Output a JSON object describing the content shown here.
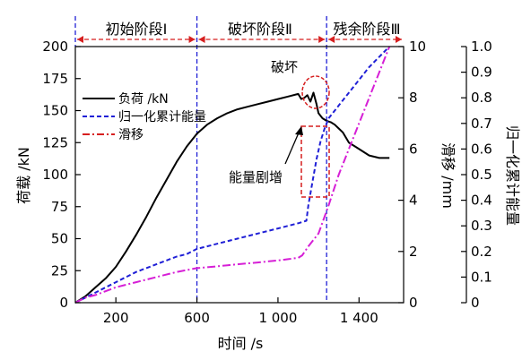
{
  "chart_data": {
    "type": "line",
    "xlabel": "时间 /s",
    "ylabel_left": "荷载 /kN",
    "ylabel_right1": "滑移 /mm",
    "ylabel_right2": "归一化累计能量",
    "xlim": [
      0,
      1620
    ],
    "ylim_left": [
      0,
      200
    ],
    "ylim_right1": [
      0,
      10
    ],
    "ylim_right2": [
      0,
      1.0
    ],
    "x_ticks": [
      200,
      600,
      1000,
      1400
    ],
    "x_tick_labels": [
      "200",
      "600",
      "1 000",
      "1 400"
    ],
    "y_left_ticks": [
      0,
      25,
      50,
      75,
      100,
      125,
      150,
      175,
      200
    ],
    "y_left_tick_labels": [
      "0",
      "25",
      "50",
      "75",
      "100",
      "125",
      "150",
      "175",
      "200"
    ],
    "y_right1_ticks": [
      0,
      2,
      4,
      6,
      8,
      10
    ],
    "y_right1_tick_labels": [
      "0",
      "2",
      "4",
      "6",
      "8",
      "10"
    ],
    "y_right2_ticks": [
      0,
      0.1,
      0.2,
      0.3,
      0.4,
      0.5,
      0.6,
      0.7,
      0.8,
      0.9,
      1.0
    ],
    "y_right2_tick_labels": [
      "0",
      "0.1",
      "0.2",
      "0.3",
      "0.4",
      "0.5",
      "0.6",
      "0.7",
      "0.8",
      "0.9",
      "1.0"
    ],
    "stage_boundaries": [
      600,
      1240
    ],
    "stages": [
      "初始阶段Ⅰ",
      "破坏阶段Ⅱ",
      "残余阶段Ⅲ"
    ],
    "legend_position": "upper-left",
    "series": [
      {
        "name": "负荷 /kN",
        "axis": "left",
        "color": "#000000",
        "dash": "solid",
        "x": [
          0,
          50,
          100,
          150,
          200,
          250,
          300,
          350,
          400,
          450,
          500,
          550,
          600,
          650,
          700,
          750,
          800,
          850,
          900,
          950,
          1000,
          1050,
          1100,
          1115,
          1130,
          1145,
          1160,
          1175,
          1190,
          1200,
          1220,
          1240,
          1260,
          1280,
          1300,
          1320,
          1350,
          1380,
          1400,
          1450,
          1500,
          1550
        ],
        "y": [
          0,
          5,
          12,
          19,
          28,
          40,
          53,
          67,
          82,
          96,
          110,
          122,
          132,
          139,
          144,
          148,
          151,
          153,
          155,
          157,
          159,
          161,
          163,
          159,
          160,
          162,
          157,
          164,
          155,
          148,
          144,
          142,
          141,
          139,
          136,
          133,
          125,
          122,
          120,
          115,
          113,
          113
        ]
      },
      {
        "name": "归一化累计能量",
        "axis": "right2",
        "color": "#1f1fd6",
        "dash": "dash",
        "x": [
          0,
          50,
          100,
          200,
          300,
          400,
          500,
          550,
          600,
          650,
          700,
          800,
          900,
          1000,
          1050,
          1100,
          1140,
          1150,
          1170,
          1190,
          1210,
          1230,
          1250,
          1280,
          1300,
          1350,
          1400,
          1450,
          1500,
          1550
        ],
        "y": [
          0,
          0.02,
          0.04,
          0.08,
          0.12,
          0.15,
          0.18,
          0.19,
          0.21,
          0.22,
          0.23,
          0.25,
          0.27,
          0.29,
          0.3,
          0.31,
          0.32,
          0.38,
          0.47,
          0.56,
          0.63,
          0.68,
          0.72,
          0.75,
          0.77,
          0.82,
          0.87,
          0.92,
          0.96,
          1.0
        ]
      },
      {
        "name": "滑移",
        "axis": "right1",
        "color": "#d61fd6",
        "dash": "dashdot",
        "x": [
          0,
          50,
          100,
          200,
          300,
          400,
          500,
          600,
          700,
          800,
          900,
          1000,
          1050,
          1100,
          1120,
          1150,
          1200,
          1250,
          1300,
          1350,
          1400,
          1450,
          1500,
          1550
        ],
        "y": [
          0,
          0.2,
          0.3,
          0.6,
          0.8,
          1.0,
          1.2,
          1.35,
          1.42,
          1.5,
          1.57,
          1.65,
          1.7,
          1.75,
          1.85,
          2.2,
          2.7,
          3.8,
          5.0,
          6.0,
          7.0,
          8.0,
          9.0,
          10.0
        ]
      }
    ],
    "annotations": [
      "破坏",
      "能量剧增"
    ]
  }
}
